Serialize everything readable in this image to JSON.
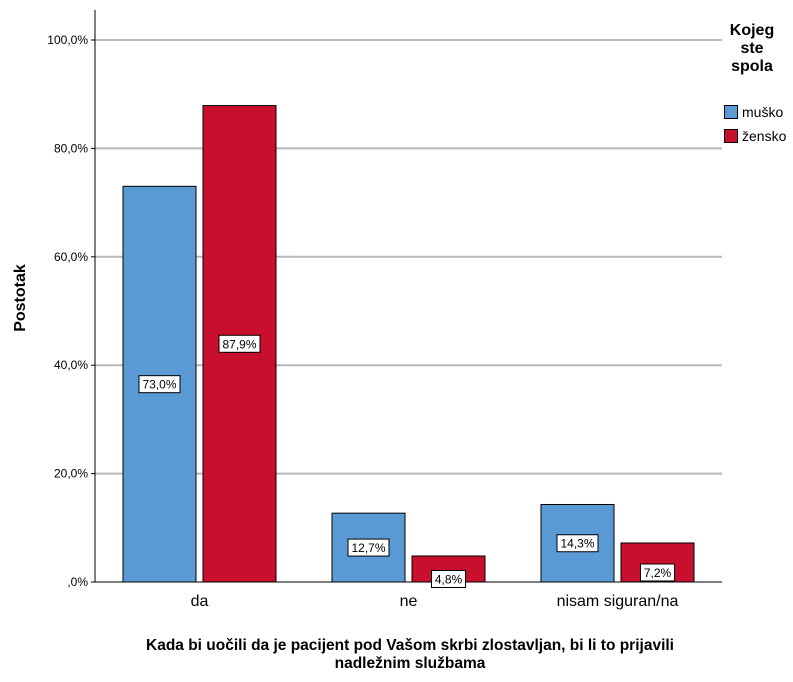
{
  "chart_data": {
    "type": "bar",
    "title": "",
    "xlabel": "Kada bi uočili da je pacijent pod Vašom skrbi zlostavljan, bi li to prijavili nadležnim službama",
    "ylabel": "Postotak",
    "ylim": [
      0,
      100
    ],
    "yticks": [
      "100,0%",
      "80,0%",
      "60,0%",
      "40,0%",
      "20,0%",
      ",0%"
    ],
    "ytick_values": [
      100,
      80,
      60,
      40,
      20,
      0
    ],
    "categories": [
      "da",
      "ne",
      "nisam siguran/na"
    ],
    "series": [
      {
        "name": "muško",
        "color": "#5b9bd5",
        "values": [
          73.0,
          12.7,
          14.3
        ],
        "labels": [
          "73,0%",
          "12,7%",
          "14,3%"
        ]
      },
      {
        "name": "žensko",
        "color": "#c8102e",
        "values": [
          87.9,
          4.8,
          7.2
        ],
        "labels": [
          "87,9%",
          "4,8%",
          "7,2%"
        ]
      }
    ],
    "legend": {
      "title": "Kojeg\nste\nspola",
      "position": "top-right"
    },
    "grid": true
  }
}
